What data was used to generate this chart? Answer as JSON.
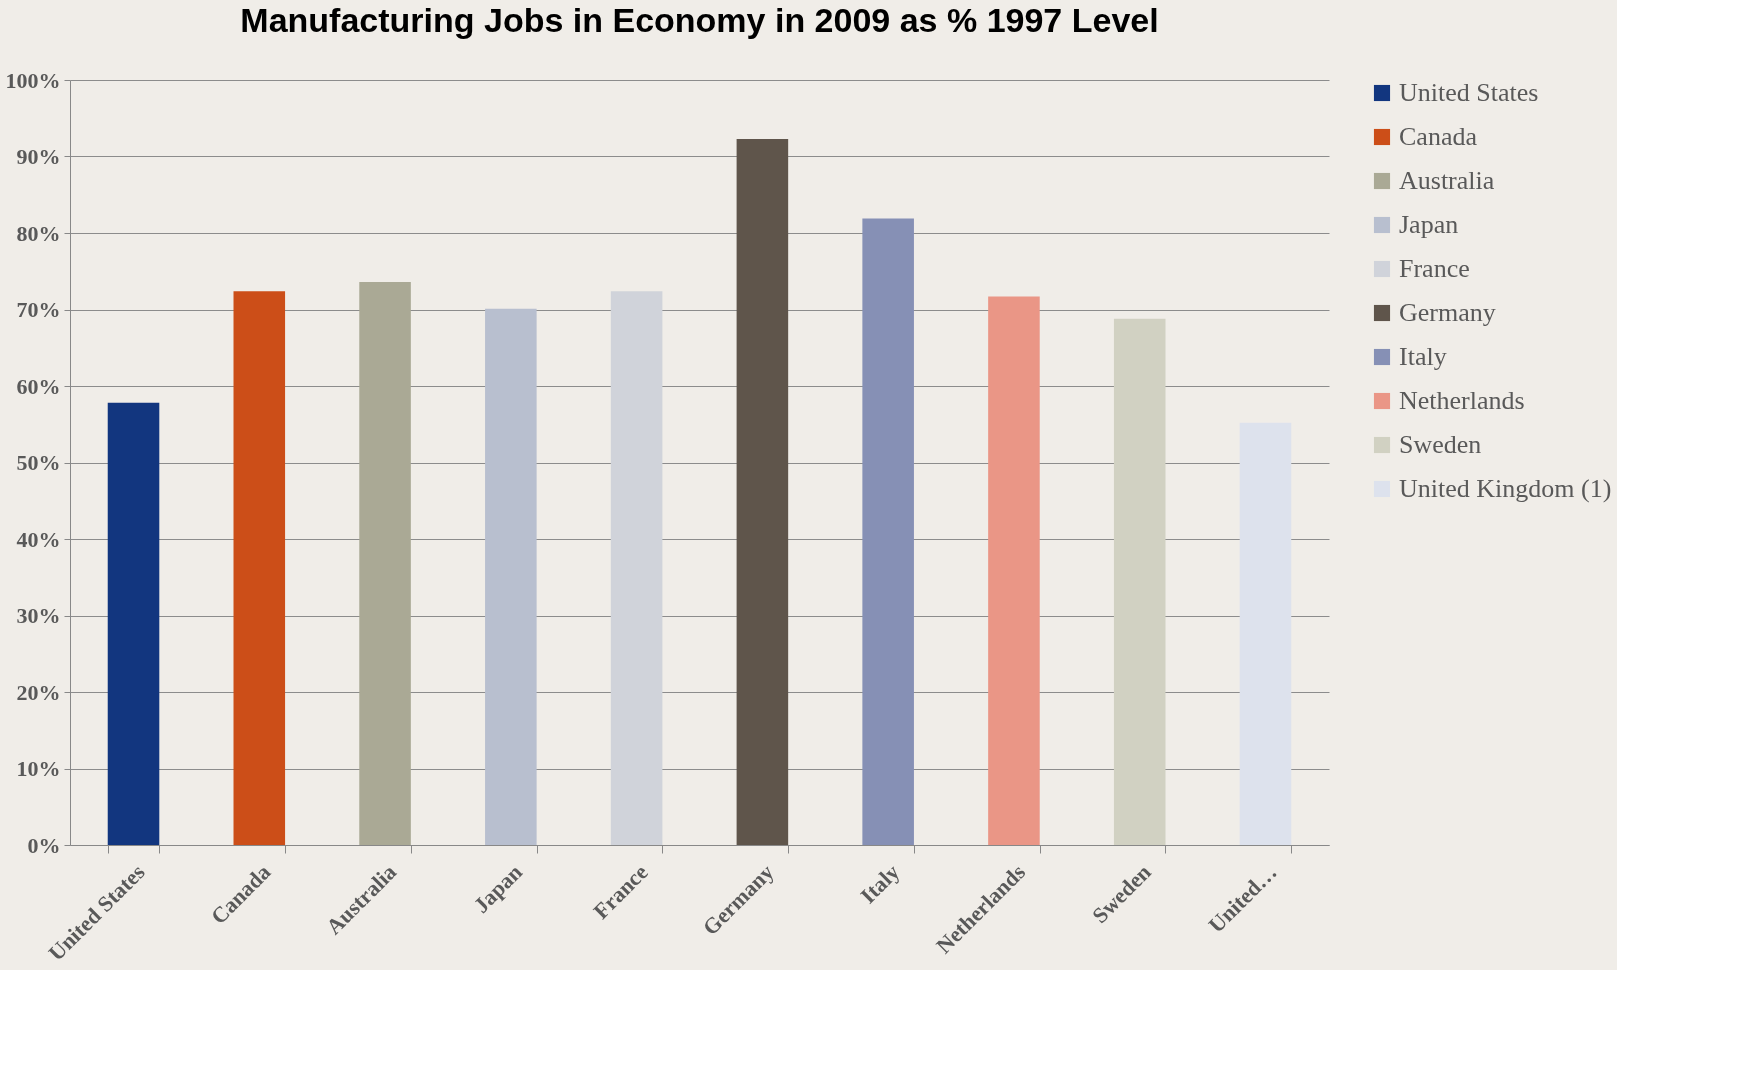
{
  "chart_data": {
    "type": "bar",
    "title": "Manufacturing Jobs in Economy in 2009 as % 1997 Level",
    "categories": [
      "United States",
      "Canada",
      "Australia",
      "Japan",
      "France",
      "Germany",
      "Italy",
      "Netherlands",
      "Sweden",
      "United…"
    ],
    "series": [
      {
        "name": "United States",
        "color": "#12367f",
        "values": [
          57.8,
          null,
          null,
          null,
          null,
          null,
          null,
          null,
          null,
          null
        ]
      },
      {
        "name": "Canada",
        "color": "#cc4e18",
        "values": [
          null,
          72.4,
          null,
          null,
          null,
          null,
          null,
          null,
          null,
          null
        ]
      },
      {
        "name": "Australia",
        "color": "#aaa995",
        "values": [
          null,
          null,
          73.6,
          null,
          null,
          null,
          null,
          null,
          null,
          null
        ]
      },
      {
        "name": "Japan",
        "color": "#b8bfcf",
        "values": [
          null,
          null,
          null,
          70.1,
          null,
          null,
          null,
          null,
          null,
          null
        ]
      },
      {
        "name": "France",
        "color": "#d0d3da",
        "values": [
          null,
          null,
          null,
          null,
          72.4,
          null,
          null,
          null,
          null,
          null
        ]
      },
      {
        "name": "Germany",
        "color": "#5f554b",
        "values": [
          null,
          null,
          null,
          null,
          null,
          92.3,
          null,
          null,
          null,
          null
        ]
      },
      {
        "name": "Italy",
        "color": "#8690b5",
        "values": [
          null,
          null,
          null,
          null,
          null,
          null,
          81.9,
          null,
          null,
          null
        ]
      },
      {
        "name": "Netherlands",
        "color": "#ea9686",
        "values": [
          null,
          null,
          null,
          null,
          null,
          null,
          null,
          71.7,
          null,
          null
        ]
      },
      {
        "name": "Sweden",
        "color": "#d1d1c2",
        "values": [
          null,
          null,
          null,
          null,
          null,
          null,
          null,
          null,
          68.8,
          null
        ]
      },
      {
        "name": "United Kingdom (1)",
        "color": "#dde2ed",
        "values": [
          null,
          null,
          null,
          null,
          null,
          null,
          null,
          null,
          null,
          55.2
        ]
      }
    ],
    "ylim": [
      0,
      100
    ],
    "yticks": [
      {
        "value": 0,
        "label": "0%"
      },
      {
        "value": 10,
        "label": "10%"
      },
      {
        "value": 20,
        "label": "20%"
      },
      {
        "value": 30,
        "label": "30%"
      },
      {
        "value": 40,
        "label": "40%"
      },
      {
        "value": 50,
        "label": "50%"
      },
      {
        "value": 60,
        "label": "60%"
      },
      {
        "value": 70,
        "label": "70%"
      },
      {
        "value": 80,
        "label": "80%"
      },
      {
        "value": 90,
        "label": "90%"
      },
      {
        "value": 100,
        "label": "100%"
      }
    ],
    "grid": "y",
    "legend": "right"
  }
}
